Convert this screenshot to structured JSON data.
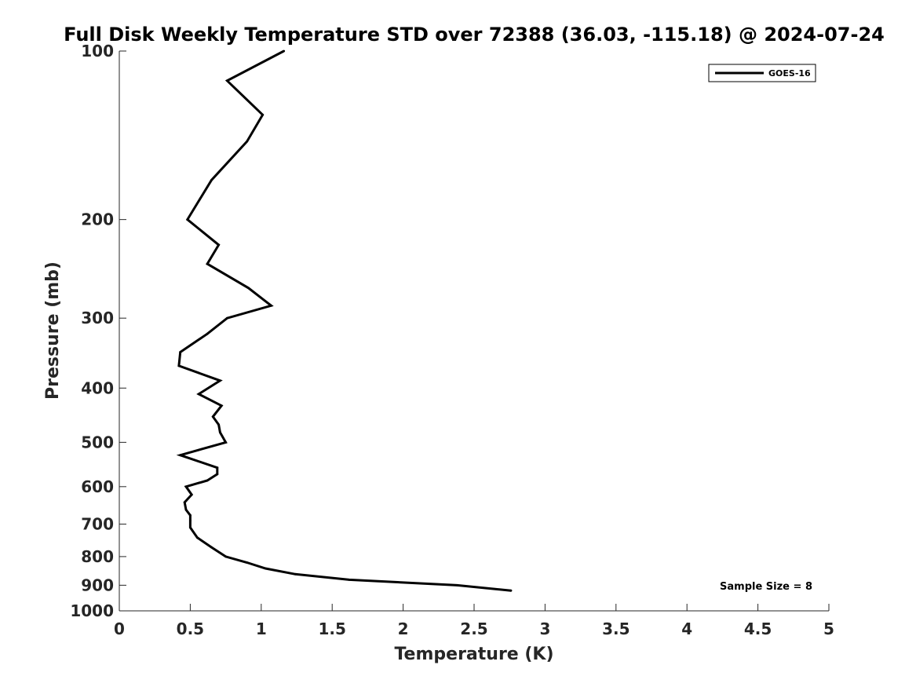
{
  "chart_data": {
    "type": "line",
    "title": "Full Disk Weekly Temperature STD over 72388 (36.03, -115.18) @ 2024-07-24",
    "xlabel": "Temperature (K)",
    "ylabel": "Pressure (mb)",
    "xlim": [
      0,
      5
    ],
    "ylim": [
      100,
      1000
    ],
    "y_scale": "log",
    "y_inverted": true,
    "grid": false,
    "legend_position": "top-right",
    "x_ticks": [
      0,
      0.5,
      1,
      1.5,
      2,
      2.5,
      3,
      3.5,
      4,
      4.5,
      5
    ],
    "x_tick_labels": [
      "0",
      "0.5",
      "1",
      "1.5",
      "2",
      "2.5",
      "3",
      "3.5",
      "4",
      "4.5",
      "5"
    ],
    "y_ticks": [
      100,
      200,
      300,
      400,
      500,
      600,
      700,
      800,
      900,
      1000
    ],
    "y_tick_labels": [
      "100",
      "200",
      "300",
      "400",
      "500",
      "600",
      "700",
      "800",
      "900",
      "1000"
    ],
    "series": [
      {
        "name": "GOES-16",
        "color": "#000000",
        "x": [
          1.16,
          0.76,
          1.01,
          0.9,
          0.65,
          0.48,
          0.7,
          0.62,
          0.91,
          1.07,
          0.76,
          0.62,
          0.43,
          0.42,
          0.71,
          0.56,
          0.72,
          0.66,
          0.7,
          0.71,
          0.75,
          0.43,
          0.69,
          0.69,
          0.62,
          0.47,
          0.51,
          0.46,
          0.47,
          0.5,
          0.5,
          0.5,
          0.55,
          0.65,
          0.75,
          0.9,
          1.03,
          1.24,
          1.62,
          2.38,
          2.76
        ],
        "y": [
          100,
          113,
          130,
          145,
          170,
          200,
          222,
          240,
          265,
          285,
          300,
          320,
          345,
          365,
          388,
          410,
          430,
          450,
          465,
          480,
          500,
          527,
          555,
          570,
          585,
          600,
          620,
          640,
          660,
          675,
          690,
          710,
          740,
          770,
          800,
          820,
          840,
          860,
          880,
          900,
          920
        ]
      }
    ],
    "annotation": "Sample Size = 8"
  }
}
